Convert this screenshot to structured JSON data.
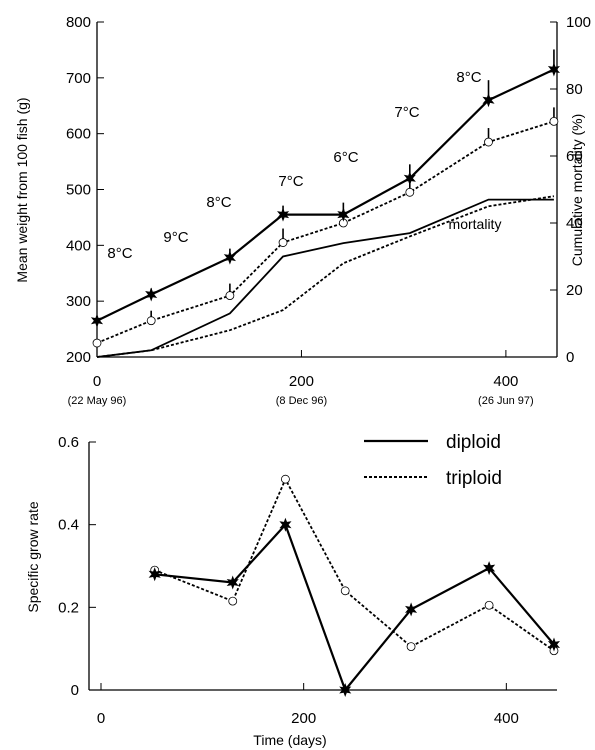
{
  "chart_data": [
    {
      "type": "line",
      "title": "",
      "xlabel": "",
      "ylabel": "Mean weight from 100 fish (g)",
      "y2label": "Cumulative mortality (%)",
      "xlim": [
        0,
        450
      ],
      "ylim": [
        200,
        800
      ],
      "y2lim": [
        0,
        100
      ],
      "xticks": [
        0,
        200,
        400
      ],
      "yticks": [
        200,
        300,
        400,
        500,
        600,
        700,
        800
      ],
      "y2ticks": [
        0,
        20,
        40,
        60,
        80,
        100
      ],
      "date_labels": [
        {
          "x": 0,
          "label": "(22 May 96)"
        },
        {
          "x": 200,
          "label": "(8 Dec 96)"
        },
        {
          "x": 400,
          "label": "(26 Jun 97)"
        }
      ],
      "temperature_labels": [
        "8°C",
        "9°C",
        "8°C",
        "7°C",
        "6°C",
        "7°C",
        "8°C"
      ],
      "annotation": "mortality",
      "series": [
        {
          "name": "diploid",
          "axis": "left",
          "x": [
            0,
            53,
            130,
            182,
            241,
            306,
            383,
            447
          ],
          "values": [
            265,
            312,
            378,
            455,
            455,
            520,
            660,
            715
          ]
        },
        {
          "name": "triploid",
          "axis": "left",
          "x": [
            0,
            53,
            130,
            182,
            241,
            306,
            383,
            447
          ],
          "values": [
            225,
            265,
            310,
            405,
            440,
            495,
            585,
            622
          ]
        },
        {
          "name": "diploid",
          "axis": "right",
          "x": [
            0,
            53,
            130,
            182,
            241,
            306,
            383,
            447
          ],
          "values": [
            0,
            2,
            13,
            30,
            34,
            37,
            47,
            47
          ]
        },
        {
          "name": "triploid",
          "axis": "right",
          "x": [
            0,
            53,
            130,
            182,
            241,
            306,
            383,
            447
          ],
          "values": [
            0,
            2,
            8,
            14,
            28,
            36,
            45,
            48
          ]
        }
      ]
    },
    {
      "type": "line",
      "title": "",
      "xlabel": "Time (days)",
      "ylabel": "Specific grow rate",
      "xlim": [
        0,
        450
      ],
      "ylim": [
        0,
        0.6
      ],
      "xticks": [
        0,
        200,
        400
      ],
      "yticks": [
        0,
        0.2,
        0.4,
        0.6
      ],
      "legend_position": "top-right",
      "series": [
        {
          "name": "diploid",
          "x": [
            53,
            130,
            182,
            241,
            306,
            383,
            447
          ],
          "values": [
            0.28,
            0.26,
            0.4,
            0.0,
            0.195,
            0.295,
            0.11
          ]
        },
        {
          "name": "triploid",
          "x": [
            53,
            130,
            182,
            241,
            306,
            383,
            447
          ],
          "values": [
            0.29,
            0.215,
            0.51,
            0.24,
            0.105,
            0.205,
            0.095
          ]
        }
      ]
    }
  ]
}
